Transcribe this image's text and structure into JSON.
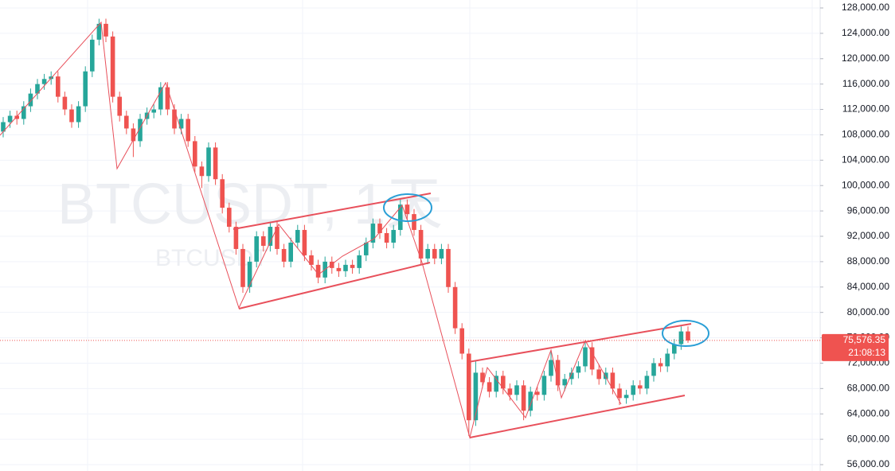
{
  "chart_data": {
    "type": "candlestick",
    "watermark": "BTCUSDT, 1天",
    "watermark_sub": "BTCUSDT",
    "up_color": "#26a69a",
    "down_color": "#ef5350",
    "grid": true,
    "ylim": [
      54997,
      129254
    ],
    "yticks": [
      {
        "value": 128000,
        "label": "128,000.00"
      },
      {
        "value": 124000,
        "label": "124,000.00"
      },
      {
        "value": 120000,
        "label": "120,000.00"
      },
      {
        "value": 116000,
        "label": "116,000.00"
      },
      {
        "value": 112000,
        "label": "112,000.00"
      },
      {
        "value": 108000,
        "label": "108,000.00"
      },
      {
        "value": 104000,
        "label": "104,000.00"
      },
      {
        "value": 100000,
        "label": "100,000.00"
      },
      {
        "value": 96000,
        "label": "96,000.00"
      },
      {
        "value": 92000,
        "label": "92,000.00"
      },
      {
        "value": 88000,
        "label": "88,000.00"
      },
      {
        "value": 84000,
        "label": "84,000.00"
      },
      {
        "value": 80000,
        "label": "80,000.00"
      },
      {
        "value": 76000,
        "label": "76,000.00"
      },
      {
        "value": 72000,
        "label": "72,000.00"
      },
      {
        "value": 68000,
        "label": "68,000.00"
      },
      {
        "value": 64000,
        "label": "64,000.00"
      },
      {
        "value": 60000,
        "label": "60,000.00"
      },
      {
        "value": 56000,
        "label": "56,000.00"
      }
    ],
    "open": [
      108500,
      110000,
      111000,
      110500,
      112500,
      114500,
      116000,
      116800,
      117200,
      114000,
      112000,
      110000,
      112500,
      118000,
      123000,
      125500,
      123500,
      114000,
      111000,
      109000,
      107000,
      110500,
      111500,
      112000,
      115500,
      112000,
      109000,
      110500,
      107000,
      103000,
      101500,
      106000,
      101000,
      96500,
      93500,
      90000,
      84000,
      88000,
      92000,
      90500,
      93500,
      90000,
      88000,
      91000,
      93000,
      89000,
      87500,
      85500,
      88000,
      87000,
      86500,
      87500,
      87000,
      89000,
      91000,
      94000,
      92500,
      91000,
      93000,
      97000,
      95500,
      93000,
      88500,
      90000,
      88500,
      90000,
      84000,
      77500,
      73500,
      63000,
      70500,
      69000,
      67500,
      70000,
      68000,
      67000,
      68500,
      64500,
      67500,
      67000,
      70000,
      72500,
      68500,
      69500,
      70500,
      71500,
      74500,
      71000,
      69500,
      70500,
      68000,
      66500,
      67000,
      68500,
      68000,
      70000,
      72000,
      71500,
      73500,
      75000,
      77000
    ],
    "high": [
      110800,
      111800,
      111800,
      113300,
      115300,
      116800,
      117600,
      118000,
      118000,
      114800,
      112800,
      113300,
      118800,
      123800,
      126300,
      126300,
      124300,
      114800,
      111800,
      109800,
      111300,
      112300,
      112800,
      116300,
      116300,
      112800,
      111300,
      111300,
      107800,
      103800,
      106800,
      106800,
      101800,
      97300,
      94300,
      90800,
      88800,
      92800,
      92800,
      94300,
      94300,
      90800,
      91800,
      93800,
      93800,
      89800,
      88300,
      88800,
      88800,
      87800,
      88300,
      88300,
      89800,
      91800,
      94800,
      94800,
      93300,
      93800,
      97800,
      97800,
      96300,
      93800,
      90800,
      90800,
      90800,
      90800,
      84800,
      78300,
      74300,
      72300,
      71300,
      69800,
      70800,
      70800,
      68800,
      69300,
      69300,
      68300,
      68300,
      70800,
      73800,
      73300,
      70300,
      71300,
      72300,
      75300,
      75300,
      71800,
      71300,
      71300,
      68800,
      67800,
      69300,
      69300,
      70800,
      72800,
      72800,
      74300,
      75800,
      77800,
      77800
    ],
    "low": [
      107600,
      109100,
      109600,
      109600,
      111600,
      113600,
      115100,
      115900,
      113100,
      111100,
      109100,
      109100,
      111600,
      117100,
      122100,
      122600,
      113100,
      110100,
      108100,
      104500,
      106100,
      109600,
      110600,
      111100,
      111100,
      108100,
      108100,
      106100,
      102100,
      99600,
      100600,
      100100,
      95600,
      92600,
      89100,
      83100,
      83100,
      87100,
      89600,
      89600,
      89100,
      87100,
      87100,
      90100,
      88100,
      86600,
      84600,
      84600,
      86100,
      85600,
      85600,
      86100,
      86100,
      88100,
      90100,
      91600,
      90100,
      90100,
      92100,
      94600,
      92100,
      87600,
      87600,
      87600,
      87600,
      83100,
      76600,
      72600,
      60500,
      62100,
      68100,
      66600,
      66600,
      67100,
      66100,
      66100,
      63000,
      63600,
      66100,
      66100,
      69100,
      67600,
      67600,
      68600,
      69600,
      70600,
      70100,
      68600,
      68600,
      67100,
      65400,
      65600,
      66100,
      67100,
      67100,
      69100,
      70600,
      70600,
      72600,
      74100,
      75200
    ],
    "close": [
      110000,
      111000,
      110500,
      112500,
      114500,
      116000,
      116800,
      117200,
      114000,
      112000,
      110000,
      112500,
      118000,
      123000,
      125500,
      123500,
      114000,
      111000,
      109000,
      107000,
      110500,
      111500,
      112000,
      115500,
      112000,
      109000,
      110500,
      107000,
      103000,
      101500,
      106000,
      101000,
      96500,
      93500,
      90000,
      84000,
      88000,
      92000,
      90500,
      93500,
      90000,
      88000,
      91000,
      93000,
      89000,
      87500,
      85500,
      88000,
      87000,
      86500,
      87500,
      87000,
      89000,
      91000,
      94000,
      92500,
      91000,
      93000,
      97000,
      95500,
      93000,
      88500,
      90000,
      88500,
      90000,
      84000,
      77500,
      73500,
      63000,
      70500,
      69000,
      67500,
      70000,
      68000,
      67000,
      68500,
      64500,
      67500,
      67000,
      70000,
      72500,
      68500,
      69500,
      70500,
      71500,
      74500,
      71000,
      69500,
      70500,
      68000,
      66500,
      67000,
      68500,
      68000,
      70000,
      72000,
      71500,
      73500,
      75000,
      77000,
      75576.35
    ],
    "last_price_label": "75,576.35",
    "countdown": "21:08:13"
  }
}
